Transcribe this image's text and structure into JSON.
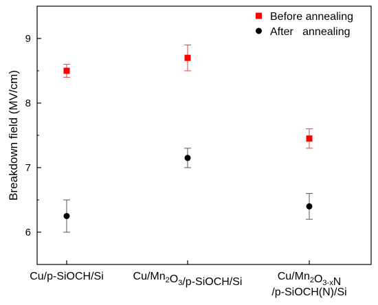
{
  "chart_data": {
    "type": "scatter",
    "ylabel": "Breakdown field (MV/cm)",
    "xlabel": "",
    "ylim": [
      5.5,
      9.5
    ],
    "yticks": [
      6,
      7,
      8,
      9
    ],
    "categories": [
      {
        "parts": [
          {
            "t": "Cu/p-SiOCH/Si",
            "sub": false
          }
        ]
      },
      {
        "parts": [
          {
            "t": "Cu/Mn",
            "sub": false
          },
          {
            "t": "2",
            "sub": true
          },
          {
            "t": "O",
            "sub": false
          },
          {
            "t": "3",
            "sub": true
          },
          {
            "t": "/p-SiOCH/Si",
            "sub": false
          }
        ]
      },
      {
        "parts": [
          {
            "t": "Cu/Mn",
            "sub": false
          },
          {
            "t": "2",
            "sub": true
          },
          {
            "t": "O",
            "sub": false
          },
          {
            "t": "3-x",
            "sub": true
          },
          {
            "t": "N",
            "sub": false
          }
        ],
        "line2": "/p-SiOCH(N)/Si"
      }
    ],
    "series": [
      {
        "name": "Before annealing",
        "marker": "square",
        "color": "#ff0000",
        "errcolor": "#e04040",
        "values": [
          8.5,
          8.7,
          7.45
        ],
        "err_low": [
          0.1,
          0.2,
          0.15
        ],
        "err_high": [
          0.1,
          0.2,
          0.15
        ]
      },
      {
        "name": "After   annealing",
        "marker": "circle",
        "color": "#000000",
        "errcolor": "#555555",
        "values": [
          6.25,
          7.15,
          6.4
        ],
        "err_low": [
          0.25,
          0.15,
          0.2
        ],
        "err_high": [
          0.25,
          0.15,
          0.2
        ]
      }
    ],
    "legend_position": "top-right",
    "grid": false
  }
}
